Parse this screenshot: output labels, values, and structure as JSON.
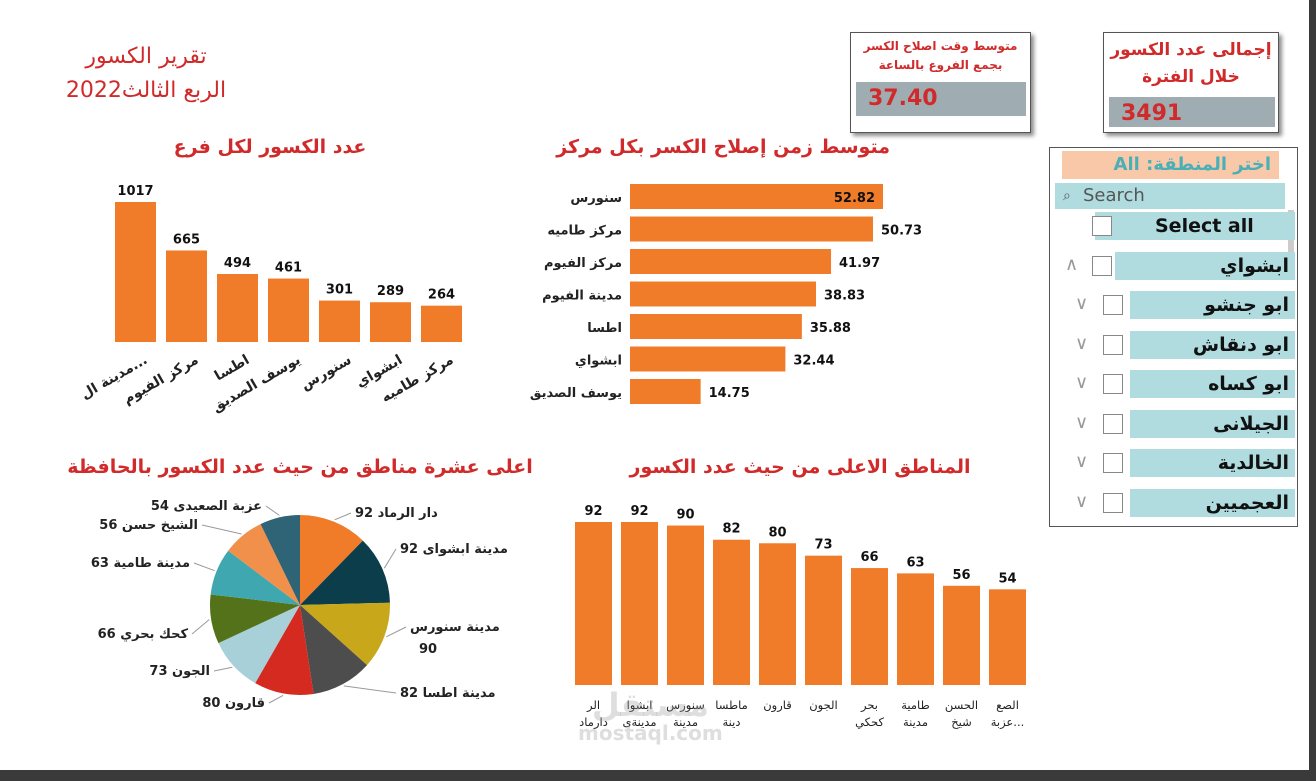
{
  "report": {
    "title": "تقرير الكسور",
    "subtitle": "الربع الثالث2022"
  },
  "kpis": {
    "avg_repair": {
      "title_line1": "متوسط وقت اصلاح الكسر",
      "title_line2": "بجمع الفروع بالساعة",
      "value": "37.40"
    },
    "total_breaks": {
      "title_line1": "إجمالى عدد الكسور",
      "title_line2": "خلال الفترة",
      "value": "3491"
    }
  },
  "slicer": {
    "header": "اختر المنطقة: All",
    "search_placeholder": "Search",
    "items": [
      {
        "label": "Select all",
        "chevron": ""
      },
      {
        "label": "ابشواي",
        "chevron": "up"
      },
      {
        "label": "ابو جنشو",
        "chevron": "down"
      },
      {
        "label": "ابو دنقاش",
        "chevron": "down"
      },
      {
        "label": "ابو كساه",
        "chevron": "down"
      },
      {
        "label": "الجيلانى",
        "chevron": "down"
      },
      {
        "label": "الخالدية",
        "chevron": "down"
      },
      {
        "label": "العجميين",
        "chevron": "down"
      }
    ]
  },
  "watermark": {
    "arabic": "مستقل",
    "latin": "mostaql.com"
  },
  "colors": {
    "bar": "#f07c2a",
    "title": "#d02a2a",
    "pie": [
      "#f07c2a",
      "#0b3d4a",
      "#c8a81a",
      "#4d4d4d",
      "#d42a20",
      "#a8d0d8",
      "#54721a",
      "#3ea7b0",
      "#f0904a",
      "#2e6475"
    ]
  },
  "chart_data": [
    {
      "type": "bar",
      "title": "عدد الكسور لكل فرع",
      "categories": [
        "مدينة ال...",
        "مركز الفيوم",
        "اطسا",
        "يوسف الصديق",
        "سنورس",
        "ابشواي",
        "مركز طاميه"
      ],
      "values": [
        1017,
        665,
        494,
        461,
        301,
        289,
        264
      ]
    },
    {
      "type": "bar",
      "orientation": "horizontal",
      "title": "متوسط زمن إصلاح الكسر بكل مركز",
      "categories": [
        "سنورس",
        "مركز طاميه",
        "مركز الفيوم",
        "مدينة الفيوم",
        "اطسا",
        "ابشواي",
        "يوسف الصديق"
      ],
      "values": [
        52.82,
        50.73,
        41.97,
        38.83,
        35.88,
        32.44,
        14.75
      ]
    },
    {
      "type": "pie",
      "title": "اعلى عشرة مناطق من حيث عدد الكسور بالحافظة",
      "categories": [
        "دار الرماد",
        "مدينة ابشواى",
        "مدينة سنورس",
        "مدينة اطسا",
        "قارون",
        "الجون",
        "كحك بحري",
        "مدينة طامية",
        "الشيخ حسن",
        "عزبة الصعيدى"
      ],
      "values": [
        92,
        92,
        90,
        82,
        80,
        73,
        66,
        63,
        56,
        54
      ],
      "labels": [
        "92 دار الرماد",
        "92 مدينة ابشواى",
        "مدينة سنورس",
        "82 مدينة اطسا",
        "80 قارون",
        "73 الجون",
        "66 كحك بحري",
        "63 مدينة طامية",
        "56 الشيخ حسن",
        "54 عزبة الصعيدى"
      ],
      "label_extra": {
        "2": "90"
      }
    },
    {
      "type": "bar",
      "title": "المناطق الاعلى من حيث عدد الكسور",
      "categories": [
        [
          "الر",
          "دارماد"
        ],
        [
          "ابشوا",
          "مدينةى"
        ],
        [
          "سنورس",
          "مدينة"
        ],
        [
          "ماطسا",
          "دينة"
        ],
        [
          "قارون"
        ],
        [
          "الجون"
        ],
        [
          "بحر",
          "كحكي"
        ],
        [
          "طامية",
          "مدينة"
        ],
        [
          "الحسن",
          "شيخ"
        ],
        [
          "الصع",
          "عزبة..."
        ]
      ],
      "values": [
        92,
        92,
        90,
        82,
        80,
        73,
        66,
        63,
        56,
        54
      ]
    }
  ]
}
